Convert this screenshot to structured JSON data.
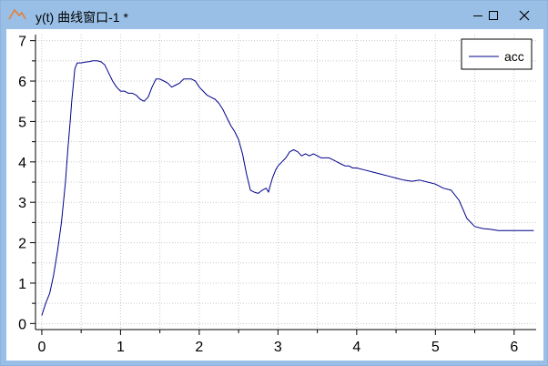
{
  "window": {
    "title": "y(t) 曲线窗口-1 *",
    "accent": "#99bfe6"
  },
  "controls": {
    "minimize": "minimize-icon",
    "maximize": "maximize-icon",
    "close": "close-icon"
  },
  "chart_data": {
    "type": "line",
    "title": "",
    "xlabel": "",
    "ylabel": "",
    "xlim": [
      -0.08,
      6.28
    ],
    "ylim": [
      -0.15,
      7.15
    ],
    "xticks": [
      0,
      1,
      2,
      3,
      4,
      5,
      6
    ],
    "yticks": [
      0,
      1,
      2,
      3,
      4,
      5,
      6,
      7
    ],
    "grid": true,
    "legend": "top-right",
    "series": [
      {
        "name": "acc",
        "color": "#00008b",
        "x": [
          0.0,
          0.05,
          0.1,
          0.15,
          0.2,
          0.25,
          0.3,
          0.33,
          0.36,
          0.38,
          0.4,
          0.42,
          0.45,
          0.5,
          0.55,
          0.6,
          0.65,
          0.7,
          0.75,
          0.8,
          0.85,
          0.9,
          0.95,
          1.0,
          1.05,
          1.1,
          1.15,
          1.2,
          1.25,
          1.3,
          1.35,
          1.4,
          1.45,
          1.5,
          1.55,
          1.6,
          1.65,
          1.7,
          1.75,
          1.8,
          1.85,
          1.9,
          1.95,
          2.0,
          2.05,
          2.1,
          2.15,
          2.2,
          2.25,
          2.3,
          2.35,
          2.4,
          2.45,
          2.5,
          2.55,
          2.6,
          2.65,
          2.7,
          2.75,
          2.8,
          2.85,
          2.88,
          2.9,
          2.93,
          2.97,
          3.0,
          3.05,
          3.1,
          3.15,
          3.2,
          3.25,
          3.3,
          3.35,
          3.4,
          3.45,
          3.5,
          3.55,
          3.6,
          3.65,
          3.7,
          3.75,
          3.8,
          3.85,
          3.9,
          3.95,
          4.0,
          4.1,
          4.2,
          4.3,
          4.4,
          4.5,
          4.6,
          4.7,
          4.8,
          4.9,
          5.0,
          5.1,
          5.2,
          5.3,
          5.4,
          5.5,
          5.6,
          5.7,
          5.8,
          5.9,
          6.0,
          6.05,
          6.1,
          6.15,
          6.2,
          6.25
        ],
        "values": [
          0.2,
          0.5,
          0.75,
          1.2,
          1.8,
          2.5,
          3.5,
          4.3,
          5.0,
          5.5,
          5.9,
          6.3,
          6.45,
          6.45,
          6.47,
          6.48,
          6.5,
          6.5,
          6.48,
          6.4,
          6.2,
          6.0,
          5.85,
          5.75,
          5.75,
          5.7,
          5.7,
          5.65,
          5.55,
          5.5,
          5.6,
          5.85,
          6.05,
          6.05,
          6.0,
          5.95,
          5.85,
          5.9,
          5.95,
          6.05,
          6.05,
          6.05,
          6.0,
          5.85,
          5.75,
          5.65,
          5.6,
          5.55,
          5.45,
          5.3,
          5.1,
          4.9,
          4.75,
          4.55,
          4.2,
          3.7,
          3.3,
          3.25,
          3.22,
          3.3,
          3.35,
          3.25,
          3.4,
          3.6,
          3.8,
          3.9,
          4.0,
          4.1,
          4.25,
          4.3,
          4.25,
          4.15,
          4.2,
          4.15,
          4.2,
          4.15,
          4.1,
          4.1,
          4.1,
          4.05,
          4.0,
          3.95,
          3.9,
          3.9,
          3.85,
          3.85,
          3.8,
          3.75,
          3.7,
          3.65,
          3.6,
          3.55,
          3.52,
          3.55,
          3.5,
          3.45,
          3.35,
          3.3,
          3.05,
          2.6,
          2.4,
          2.35,
          2.33,
          2.3,
          2.3,
          2.3,
          2.3,
          2.3,
          2.3,
          2.3,
          2.3
        ]
      }
    ]
  }
}
